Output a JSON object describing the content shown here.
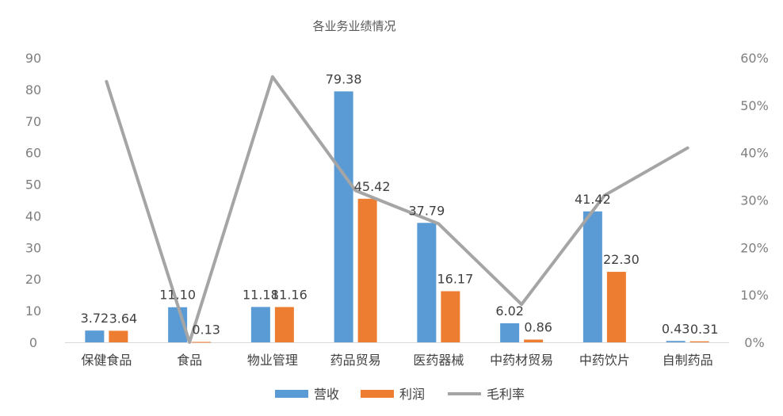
{
  "chart_data": {
    "type": "bar",
    "title": "各业务业绩情况",
    "categories": [
      "保健食品",
      "食品",
      "物业管理",
      "药品贸易",
      "医药器械",
      "中药材贸易",
      "中药饮片",
      "自制药品"
    ],
    "series": [
      {
        "name": "营收",
        "type": "bar",
        "axis": "left",
        "color": "#5B9BD5",
        "values": [
          3.72,
          11.1,
          11.18,
          79.38,
          37.79,
          6.02,
          41.42,
          0.43
        ],
        "labels": [
          "3.72",
          "11.10",
          "11.18",
          "79.38",
          "37.79",
          "6.02",
          "41.42",
          "0.43"
        ]
      },
      {
        "name": "利润",
        "type": "bar",
        "axis": "left",
        "color": "#ED7D31",
        "values": [
          3.64,
          0.13,
          11.16,
          45.42,
          16.17,
          0.86,
          22.3,
          0.31
        ],
        "labels": [
          "3.64",
          "0.13",
          "11.16",
          "45.42",
          "16.17",
          "0.86",
          "22.30",
          "0.31"
        ]
      },
      {
        "name": "毛利率",
        "type": "line",
        "axis": "right",
        "color": "#A5A5A5",
        "values": [
          0.55,
          0.0,
          0.56,
          0.32,
          0.25,
          0.08,
          0.31,
          0.41
        ]
      }
    ],
    "y_left": {
      "ylim": [
        0,
        90
      ],
      "ticks": [
        "0",
        "10",
        "20",
        "30",
        "40",
        "50",
        "60",
        "70",
        "80",
        "90"
      ]
    },
    "y_right": {
      "ylim": [
        0,
        0.6
      ],
      "ticks": [
        "0%",
        "10%",
        "20%",
        "30%",
        "40%",
        "50%",
        "60%"
      ]
    },
    "grid": false,
    "legend": "bottom"
  }
}
